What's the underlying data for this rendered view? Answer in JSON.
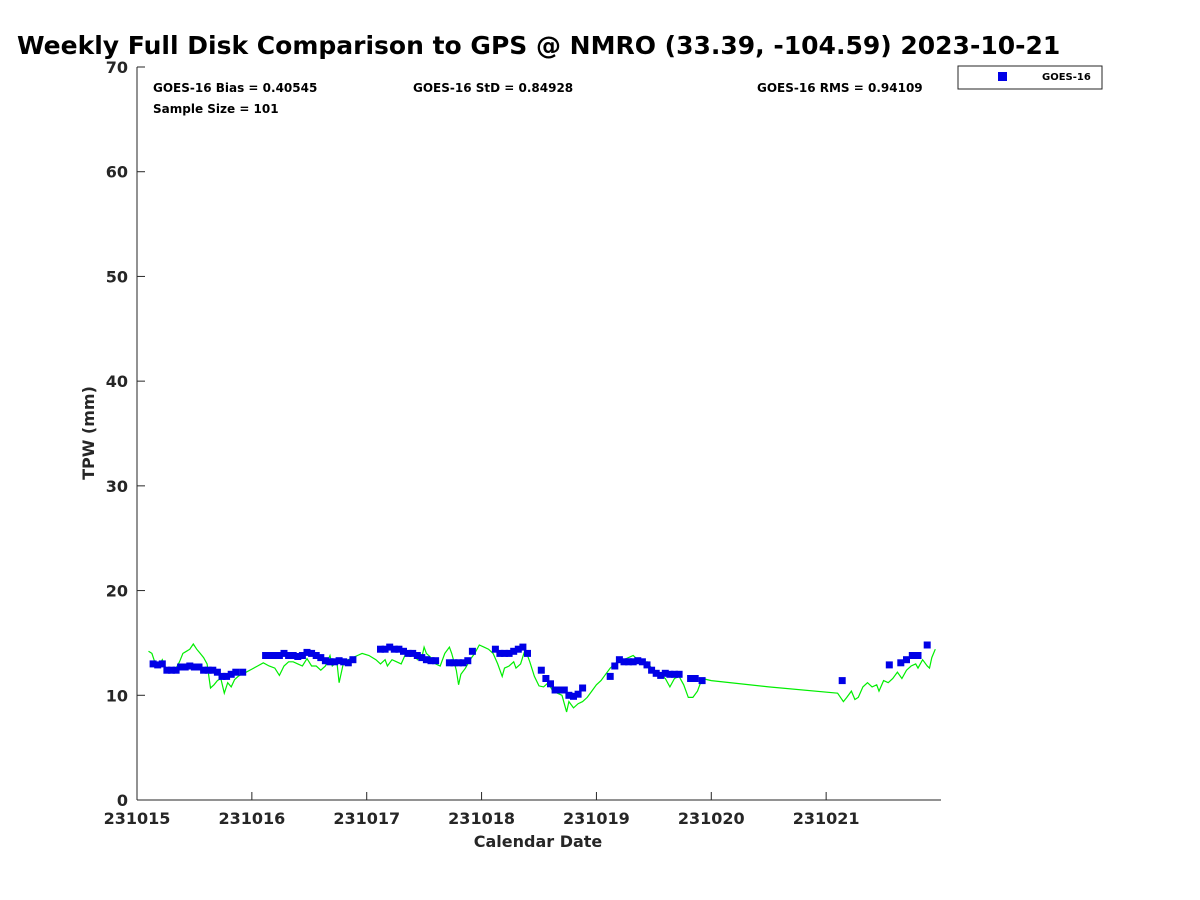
{
  "title": "Weekly Full Disk Comparison to GPS @ NMRO (33.39, -104.59) 2023-10-21",
  "stats": {
    "bias": "GOES-16 Bias = 0.40545",
    "std": "GOES-16 StD = 0.84928",
    "rms": "GOES-16 RMS = 0.94109",
    "sample": "Sample Size = 101"
  },
  "legend": {
    "label": "GOES-16"
  },
  "colors": {
    "goes": "#0000e6",
    "gps": "#00ee00",
    "axis": "#262626"
  },
  "chart_data": {
    "type": "scatter",
    "xlabel": "Calendar Date",
    "ylabel": "TPW (mm)",
    "xlim": [
      0,
      7
    ],
    "ylim": [
      0,
      70
    ],
    "x_ticks": [
      0,
      1,
      2,
      3,
      4,
      5,
      6
    ],
    "x_tick_labels": [
      "231015",
      "231016",
      "231017",
      "231018",
      "231019",
      "231020",
      "231021"
    ],
    "y_ticks": [
      0,
      10,
      20,
      30,
      40,
      50,
      60,
      70
    ],
    "y_tick_labels": [
      "0",
      "10",
      "20",
      "30",
      "40",
      "50",
      "60",
      "70"
    ],
    "legend_position": "outside top-right",
    "grid": false,
    "series": [
      {
        "name": "GOES-16",
        "style": "markers",
        "points": [
          [
            0.14,
            13.0
          ],
          [
            0.18,
            12.9
          ],
          [
            0.22,
            13.0
          ],
          [
            0.26,
            12.4
          ],
          [
            0.3,
            12.4
          ],
          [
            0.34,
            12.4
          ],
          [
            0.38,
            12.7
          ],
          [
            0.42,
            12.7
          ],
          [
            0.46,
            12.8
          ],
          [
            0.5,
            12.7
          ],
          [
            0.54,
            12.7
          ],
          [
            0.58,
            12.4
          ],
          [
            0.62,
            12.4
          ],
          [
            0.66,
            12.4
          ],
          [
            0.7,
            12.2
          ],
          [
            0.74,
            11.8
          ],
          [
            0.78,
            11.8
          ],
          [
            0.82,
            12.0
          ],
          [
            0.86,
            12.2
          ],
          [
            0.92,
            12.2
          ],
          [
            1.12,
            13.8
          ],
          [
            1.16,
            13.8
          ],
          [
            1.2,
            13.8
          ],
          [
            1.24,
            13.8
          ],
          [
            1.28,
            14.0
          ],
          [
            1.32,
            13.8
          ],
          [
            1.36,
            13.8
          ],
          [
            1.4,
            13.7
          ],
          [
            1.44,
            13.8
          ],
          [
            1.48,
            14.1
          ],
          [
            1.52,
            14.0
          ],
          [
            1.56,
            13.8
          ],
          [
            1.6,
            13.6
          ],
          [
            1.64,
            13.3
          ],
          [
            1.68,
            13.2
          ],
          [
            1.72,
            13.2
          ],
          [
            1.76,
            13.3
          ],
          [
            1.8,
            13.2
          ],
          [
            1.84,
            13.1
          ],
          [
            1.88,
            13.4
          ],
          [
            2.12,
            14.4
          ],
          [
            2.16,
            14.4
          ],
          [
            2.2,
            14.6
          ],
          [
            2.24,
            14.4
          ],
          [
            2.28,
            14.4
          ],
          [
            2.32,
            14.2
          ],
          [
            2.36,
            14.0
          ],
          [
            2.4,
            14.0
          ],
          [
            2.44,
            13.8
          ],
          [
            2.48,
            13.6
          ],
          [
            2.52,
            13.4
          ],
          [
            2.56,
            13.3
          ],
          [
            2.6,
            13.3
          ],
          [
            2.72,
            13.1
          ],
          [
            2.76,
            13.1
          ],
          [
            2.8,
            13.1
          ],
          [
            2.84,
            13.1
          ],
          [
            2.88,
            13.3
          ],
          [
            2.92,
            14.2
          ],
          [
            3.12,
            14.4
          ],
          [
            3.16,
            14.0
          ],
          [
            3.2,
            14.0
          ],
          [
            3.24,
            14.0
          ],
          [
            3.28,
            14.2
          ],
          [
            3.32,
            14.4
          ],
          [
            3.36,
            14.6
          ],
          [
            3.4,
            14.0
          ],
          [
            3.52,
            12.4
          ],
          [
            3.56,
            11.6
          ],
          [
            3.6,
            11.1
          ],
          [
            3.64,
            10.5
          ],
          [
            3.68,
            10.5
          ],
          [
            3.72,
            10.5
          ],
          [
            3.76,
            10.0
          ],
          [
            3.8,
            9.9
          ],
          [
            3.84,
            10.1
          ],
          [
            3.88,
            10.7
          ],
          [
            4.12,
            11.8
          ],
          [
            4.16,
            12.8
          ],
          [
            4.2,
            13.4
          ],
          [
            4.24,
            13.2
          ],
          [
            4.28,
            13.2
          ],
          [
            4.32,
            13.2
          ],
          [
            4.36,
            13.3
          ],
          [
            4.4,
            13.2
          ],
          [
            4.44,
            12.9
          ],
          [
            4.48,
            12.4
          ],
          [
            4.52,
            12.1
          ],
          [
            4.56,
            11.9
          ],
          [
            4.6,
            12.1
          ],
          [
            4.64,
            12.0
          ],
          [
            4.68,
            12.0
          ],
          [
            4.72,
            12.0
          ],
          [
            4.82,
            11.6
          ],
          [
            4.86,
            11.6
          ],
          [
            4.92,
            11.4
          ],
          [
            6.14,
            11.4
          ],
          [
            6.55,
            12.9
          ],
          [
            6.65,
            13.1
          ],
          [
            6.7,
            13.4
          ],
          [
            6.75,
            13.8
          ],
          [
            6.8,
            13.8
          ],
          [
            6.88,
            14.8
          ]
        ]
      },
      {
        "name": "GPS",
        "style": "line",
        "points": [
          [
            0.1,
            14.2
          ],
          [
            0.13,
            14.0
          ],
          [
            0.16,
            13.0
          ],
          [
            0.19,
            12.8
          ],
          [
            0.22,
            13.4
          ],
          [
            0.25,
            12.6
          ],
          [
            0.28,
            12.4
          ],
          [
            0.31,
            12.2
          ],
          [
            0.34,
            12.6
          ],
          [
            0.37,
            13.2
          ],
          [
            0.4,
            14.0
          ],
          [
            0.43,
            14.2
          ],
          [
            0.46,
            14.4
          ],
          [
            0.49,
            14.9
          ],
          [
            0.52,
            14.4
          ],
          [
            0.55,
            14.0
          ],
          [
            0.58,
            13.6
          ],
          [
            0.61,
            13.0
          ],
          [
            0.64,
            10.7
          ],
          [
            0.67,
            11.0
          ],
          [
            0.7,
            11.4
          ],
          [
            0.73,
            11.6
          ],
          [
            0.76,
            10.2
          ],
          [
            0.79,
            11.2
          ],
          [
            0.82,
            10.8
          ],
          [
            0.85,
            11.5
          ],
          [
            0.88,
            11.8
          ],
          [
            0.91,
            12.0
          ],
          [
            0.95,
            12.2
          ],
          [
            1.0,
            12.5
          ],
          [
            1.05,
            12.8
          ],
          [
            1.1,
            13.1
          ],
          [
            1.15,
            12.8
          ],
          [
            1.2,
            12.6
          ],
          [
            1.24,
            11.9
          ],
          [
            1.28,
            12.8
          ],
          [
            1.32,
            13.2
          ],
          [
            1.36,
            13.2
          ],
          [
            1.4,
            13.0
          ],
          [
            1.44,
            12.8
          ],
          [
            1.48,
            13.5
          ],
          [
            1.52,
            12.8
          ],
          [
            1.56,
            12.8
          ],
          [
            1.6,
            12.4
          ],
          [
            1.64,
            12.8
          ],
          [
            1.68,
            13.8
          ],
          [
            1.7,
            12.8
          ],
          [
            1.74,
            13.2
          ],
          [
            1.76,
            11.2
          ],
          [
            1.8,
            13.2
          ],
          [
            1.84,
            13.4
          ],
          [
            1.88,
            13.6
          ],
          [
            1.92,
            13.8
          ],
          [
            1.96,
            14.0
          ],
          [
            2.02,
            13.8
          ],
          [
            2.08,
            13.4
          ],
          [
            2.12,
            13.0
          ],
          [
            2.16,
            13.4
          ],
          [
            2.18,
            12.8
          ],
          [
            2.22,
            13.4
          ],
          [
            2.26,
            13.2
          ],
          [
            2.3,
            13.0
          ],
          [
            2.34,
            14.0
          ],
          [
            2.38,
            14.2
          ],
          [
            2.42,
            13.8
          ],
          [
            2.44,
            13.4
          ],
          [
            2.46,
            13.6
          ],
          [
            2.48,
            13.6
          ],
          [
            2.5,
            14.6
          ],
          [
            2.52,
            14.0
          ],
          [
            2.56,
            13.6
          ],
          [
            2.6,
            13.0
          ],
          [
            2.64,
            12.8
          ],
          [
            2.68,
            14.0
          ],
          [
            2.72,
            14.6
          ],
          [
            2.74,
            14.0
          ],
          [
            2.78,
            12.4
          ],
          [
            2.8,
            11.0
          ],
          [
            2.82,
            12.0
          ],
          [
            2.86,
            12.6
          ],
          [
            2.9,
            13.4
          ],
          [
            2.94,
            14.0
          ],
          [
            2.98,
            14.8
          ],
          [
            3.02,
            14.6
          ],
          [
            3.06,
            14.4
          ],
          [
            3.1,
            14.0
          ],
          [
            3.14,
            13.0
          ],
          [
            3.18,
            11.8
          ],
          [
            3.2,
            12.6
          ],
          [
            3.24,
            12.8
          ],
          [
            3.28,
            13.2
          ],
          [
            3.3,
            12.6
          ],
          [
            3.34,
            13.0
          ],
          [
            3.38,
            14.4
          ],
          [
            3.42,
            13.2
          ],
          [
            3.46,
            11.8
          ],
          [
            3.5,
            10.9
          ],
          [
            3.54,
            10.8
          ],
          [
            3.58,
            11.2
          ],
          [
            3.62,
            10.4
          ],
          [
            3.66,
            10.2
          ],
          [
            3.7,
            10.0
          ],
          [
            3.72,
            9.2
          ],
          [
            3.74,
            8.4
          ],
          [
            3.76,
            9.4
          ],
          [
            3.8,
            8.8
          ],
          [
            3.84,
            9.2
          ],
          [
            3.88,
            9.4
          ],
          [
            3.92,
            9.8
          ],
          [
            3.96,
            10.4
          ],
          [
            4.0,
            11.0
          ],
          [
            4.04,
            11.4
          ],
          [
            4.08,
            12.0
          ],
          [
            4.12,
            12.6
          ],
          [
            4.16,
            13.0
          ],
          [
            4.2,
            13.4
          ],
          [
            4.24,
            13.4
          ],
          [
            4.28,
            13.6
          ],
          [
            4.32,
            13.8
          ],
          [
            4.36,
            13.4
          ],
          [
            4.4,
            13.0
          ],
          [
            4.44,
            13.2
          ],
          [
            4.48,
            12.6
          ],
          [
            4.52,
            12.0
          ],
          [
            4.56,
            12.0
          ],
          [
            4.6,
            11.6
          ],
          [
            4.64,
            10.8
          ],
          [
            4.68,
            11.6
          ],
          [
            4.72,
            11.8
          ],
          [
            4.76,
            11.0
          ],
          [
            4.8,
            9.8
          ],
          [
            4.84,
            9.8
          ],
          [
            4.88,
            10.4
          ],
          [
            4.92,
            11.6
          ],
          [
            5.0,
            11.4
          ],
          [
            5.5,
            10.8
          ],
          [
            6.1,
            10.2
          ],
          [
            6.15,
            9.4
          ],
          [
            6.18,
            9.8
          ],
          [
            6.22,
            10.4
          ],
          [
            6.25,
            9.6
          ],
          [
            6.28,
            9.8
          ],
          [
            6.32,
            10.8
          ],
          [
            6.36,
            11.2
          ],
          [
            6.4,
            10.8
          ],
          [
            6.44,
            11.0
          ],
          [
            6.46,
            10.4
          ],
          [
            6.5,
            11.4
          ],
          [
            6.54,
            11.2
          ],
          [
            6.58,
            11.6
          ],
          [
            6.62,
            12.2
          ],
          [
            6.66,
            11.6
          ],
          [
            6.7,
            12.4
          ],
          [
            6.74,
            12.8
          ],
          [
            6.78,
            13.0
          ],
          [
            6.8,
            12.6
          ],
          [
            6.84,
            13.4
          ],
          [
            6.88,
            12.8
          ],
          [
            6.9,
            12.6
          ],
          [
            6.92,
            13.6
          ],
          [
            6.95,
            14.4
          ]
        ]
      }
    ]
  }
}
